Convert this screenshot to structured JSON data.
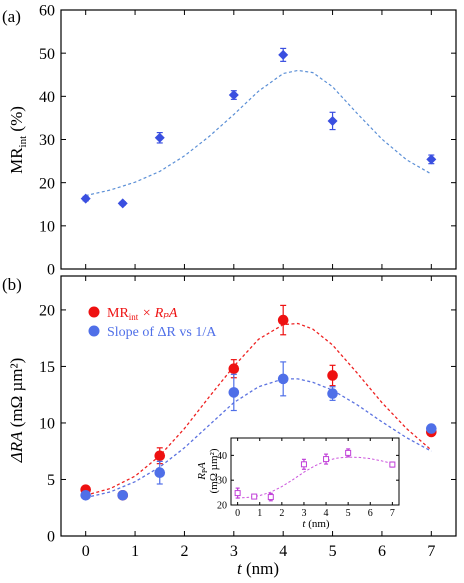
{
  "chart_data": [
    {
      "panel_label": "(a)",
      "type": "scatter",
      "ylabel_main": "MR",
      "ylabel_sub": "int",
      "ylabel_unit": " (%)",
      "ylim": [
        0,
        60
      ],
      "yticks": [
        0,
        10,
        20,
        30,
        40,
        50,
        60
      ],
      "xlim": [
        -0.5,
        7.5
      ],
      "series": [
        {
          "marker": "diamond",
          "color": "#3a4fe0",
          "points": [
            {
              "x": 0,
              "y": 16.3,
              "err": 0.5
            },
            {
              "x": 0.75,
              "y": 15.2,
              "err": 0.4
            },
            {
              "x": 1.5,
              "y": 30.4,
              "err": 1.2
            },
            {
              "x": 3,
              "y": 40.3,
              "err": 1.0
            },
            {
              "x": 4,
              "y": 49.6,
              "err": 1.5
            },
            {
              "x": 5,
              "y": 34.3,
              "err": 2.0
            },
            {
              "x": 7,
              "y": 25.4,
              "err": 1.0
            }
          ]
        }
      ],
      "fit": {
        "color": "#5b8fd6",
        "points": [
          [
            0,
            17
          ],
          [
            0.5,
            18.3
          ],
          [
            1,
            20.1
          ],
          [
            1.5,
            22.6
          ],
          [
            2,
            26.2
          ],
          [
            2.5,
            30.7
          ],
          [
            3,
            35.8
          ],
          [
            3.5,
            41.2
          ],
          [
            4,
            45.3
          ],
          [
            4.3,
            46
          ],
          [
            4.6,
            45.5
          ],
          [
            5,
            42.2
          ],
          [
            5.5,
            36
          ],
          [
            6,
            30.1
          ],
          [
            6.5,
            25.3
          ],
          [
            7,
            22
          ]
        ]
      }
    },
    {
      "panel_label": "(b)",
      "type": "scatter",
      "ylabel_main": "ΔRA",
      "ylabel_unit": " (mΩ µm²)",
      "xlabel": "t",
      "xlabel_unit": " (nm)",
      "ylim": [
        0,
        23
      ],
      "yticks": [
        0,
        5,
        10,
        15,
        20
      ],
      "xlim": [
        -0.5,
        7.5
      ],
      "xticks": [
        0,
        1,
        2,
        3,
        4,
        5,
        6,
        7
      ],
      "legend": [
        {
          "label_main": "MR",
          "label_sub": "int",
          "label_rest": " × RₚA",
          "color": "#ee1111"
        },
        {
          "label_main": "Slope of ΔR vs 1/A",
          "color": "#4f6fe8"
        }
      ],
      "legend_position": "top-left",
      "series": [
        {
          "name": "MRint × RpA",
          "color": "#ee1111",
          "points": [
            {
              "x": 0,
              "y": 4.1,
              "err": 0.3
            },
            {
              "x": 0.75,
              "y": 3.6,
              "err": 0.2
            },
            {
              "x": 1.5,
              "y": 7.1,
              "err": 0.7
            },
            {
              "x": 3,
              "y": 14.8,
              "err": 0.8
            },
            {
              "x": 4,
              "y": 19.1,
              "err": 1.3
            },
            {
              "x": 5,
              "y": 14.2,
              "err": 0.9
            },
            {
              "x": 7,
              "y": 9.2,
              "err": 0.3
            }
          ]
        },
        {
          "name": "Slope of ΔR vs 1/A",
          "color": "#4f6fe8",
          "points": [
            {
              "x": 0,
              "y": 3.6,
              "err": 0.3
            },
            {
              "x": 0.75,
              "y": 3.6,
              "err": 0.2
            },
            {
              "x": 1.5,
              "y": 5.6,
              "err": 1.0
            },
            {
              "x": 3,
              "y": 12.7,
              "err": 1.6
            },
            {
              "x": 4,
              "y": 13.9,
              "err": 1.5
            },
            {
              "x": 5,
              "y": 12.6,
              "err": 0.6
            },
            {
              "x": 7,
              "y": 9.5,
              "err": 0.3
            }
          ]
        }
      ],
      "fits": [
        {
          "color": "#ee2222",
          "points": [
            [
              0,
              3.6
            ],
            [
              0.5,
              4.2
            ],
            [
              1,
              5.3
            ],
            [
              1.5,
              7.1
            ],
            [
              2,
              9.5
            ],
            [
              2.5,
              12.3
            ],
            [
              3,
              15
            ],
            [
              3.5,
              17.4
            ],
            [
              4,
              18.7
            ],
            [
              4.3,
              18.8
            ],
            [
              4.6,
              18.3
            ],
            [
              5,
              16.9
            ],
            [
              5.5,
              14.4
            ],
            [
              6,
              11.8
            ],
            [
              6.5,
              9.5
            ],
            [
              7,
              7.6
            ]
          ]
        },
        {
          "color": "#5b72e0",
          "points": [
            [
              0,
              3.4
            ],
            [
              0.5,
              3.9
            ],
            [
              1,
              4.8
            ],
            [
              1.5,
              6.1
            ],
            [
              2,
              7.8
            ],
            [
              2.5,
              9.8
            ],
            [
              3,
              11.8
            ],
            [
              3.5,
              13.2
            ],
            [
              4,
              13.9
            ],
            [
              4.3,
              13.9
            ],
            [
              4.6,
              13.6
            ],
            [
              5,
              12.9
            ],
            [
              5.5,
              11.6
            ],
            [
              6,
              10.1
            ],
            [
              6.5,
              8.7
            ],
            [
              7,
              7.5
            ]
          ]
        }
      ],
      "inset": {
        "type": "scatter",
        "ylabel_main": "R",
        "ylabel_sub": "P",
        "ylabel_rest": "A",
        "ylabel_unit": "(mΩ µm²)",
        "xlabel": "t",
        "xlabel_unit": " (nm)",
        "xlim": [
          -0.3,
          7.3
        ],
        "ylim": [
          20,
          47
        ],
        "yticks": [
          20,
          30,
          40
        ],
        "xticks": [
          0,
          1,
          2,
          3,
          4,
          5,
          6,
          7
        ],
        "series": [
          {
            "marker": "open-square",
            "color": "#c040d8",
            "points": [
              {
                "x": 0,
                "y": 24.8,
                "err": 2.0
              },
              {
                "x": 0.75,
                "y": 23.4,
                "err": 0.8
              },
              {
                "x": 1.5,
                "y": 23.2,
                "err": 1.5
              },
              {
                "x": 3,
                "y": 36.4,
                "err": 2.0
              },
              {
                "x": 4,
                "y": 38.5,
                "err": 2.0
              },
              {
                "x": 5,
                "y": 41.0,
                "err": 1.6
              },
              {
                "x": 7,
                "y": 36.3,
                "err": 1.0
              }
            ]
          }
        ],
        "fit": {
          "color": "#cc55dd",
          "points": [
            [
              0,
              22.8
            ],
            [
              0.5,
              23.1
            ],
            [
              1,
              23.8
            ],
            [
              1.5,
              25.2
            ],
            [
              2,
              27.4
            ],
            [
              2.5,
              30.2
            ],
            [
              3,
              33.2
            ],
            [
              3.5,
              35.8
            ],
            [
              4,
              37.8
            ],
            [
              4.5,
              38.9
            ],
            [
              5,
              39.3
            ],
            [
              5.5,
              39.2
            ],
            [
              6,
              38.7
            ],
            [
              6.5,
              37.8
            ],
            [
              7,
              36.7
            ]
          ]
        }
      }
    }
  ]
}
